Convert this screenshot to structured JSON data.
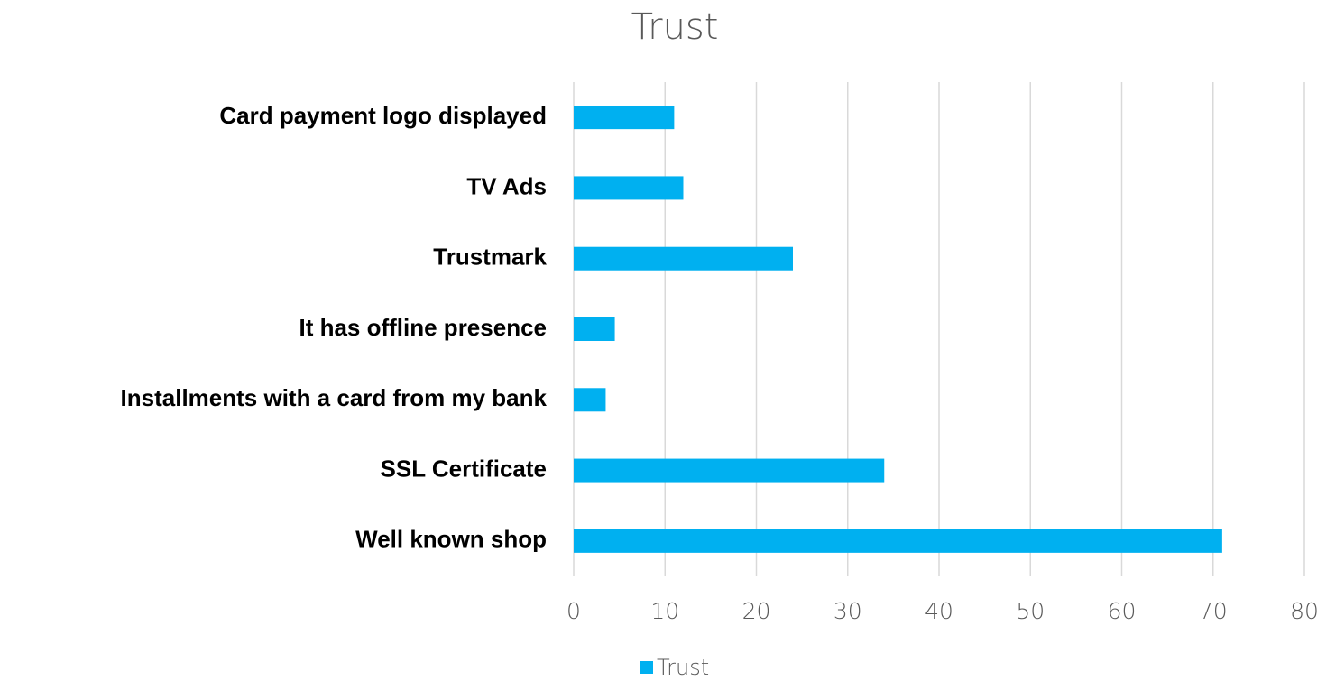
{
  "chart_data": {
    "type": "bar",
    "orientation": "horizontal",
    "title": "Trust",
    "categories": [
      "Card payment logo displayed",
      "TV Ads",
      "Trustmark",
      "It has offline presence",
      "Installments with a card from my bank",
      "SSL Certificate",
      "Well known shop"
    ],
    "series": [
      {
        "name": "Trust",
        "color": "#00b0f0",
        "values": [
          11,
          12,
          24,
          4.5,
          3.5,
          34,
          71
        ]
      }
    ],
    "xlim": [
      0,
      80
    ],
    "xticks": [
      0,
      10,
      20,
      30,
      40,
      50,
      60,
      70,
      80
    ],
    "grid": true,
    "legend": "bottom"
  }
}
